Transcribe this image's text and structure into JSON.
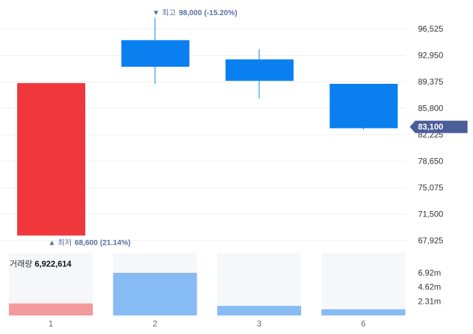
{
  "chart_data": {
    "type": "candlestick",
    "categories": [
      "1",
      "2",
      "3",
      "6"
    ],
    "candles": [
      {
        "x": "1",
        "open": 68600,
        "close": 89200,
        "high": 89200,
        "low": 68600,
        "direction": "up"
      },
      {
        "x": "2",
        "open": 95000,
        "close": 91400,
        "high": 98000,
        "low": 89100,
        "direction": "down"
      },
      {
        "x": "3",
        "open": 92400,
        "close": 89500,
        "high": 93800,
        "low": 87100,
        "direction": "down"
      },
      {
        "x": "6",
        "open": 89100,
        "close": 83100,
        "high": 89100,
        "low": 82900,
        "direction": "down"
      }
    ],
    "volume": {
      "label": "거래량",
      "value_text": "6,922,614",
      "values": [
        1.95,
        6.92,
        1.55,
        1.0
      ],
      "ticks": [
        "6.92m",
        "4.62m",
        "2.31m"
      ]
    },
    "y_ticks": [
      "96,525",
      "92,950",
      "89,375",
      "85,800",
      "82,225",
      "78,650",
      "75,075",
      "71,500",
      "67,925"
    ],
    "y_tick_values": [
      96525,
      92950,
      89375,
      85800,
      82225,
      78650,
      75075,
      71500,
      67925
    ],
    "ylim": [
      67000,
      98600
    ],
    "current_price": {
      "value": 83100,
      "label": "83,100"
    },
    "high_annotation": {
      "prefix": "▼ 최고",
      "text": "98,000 (-15.20%)",
      "value": 98000
    },
    "low_annotation": {
      "prefix": "▲ 최저",
      "text": "68,600 (21.14%)",
      "value": 68600
    },
    "grid": true,
    "colors": {
      "up": "#f0373b",
      "down": "#0a7ff0",
      "up_volume": "#f29a9c",
      "down_volume": "#86bbf4",
      "volume_bg": "#f6f7fb",
      "price_tag": "#4a5e9a",
      "annotation": "#5b6fa6"
    }
  }
}
